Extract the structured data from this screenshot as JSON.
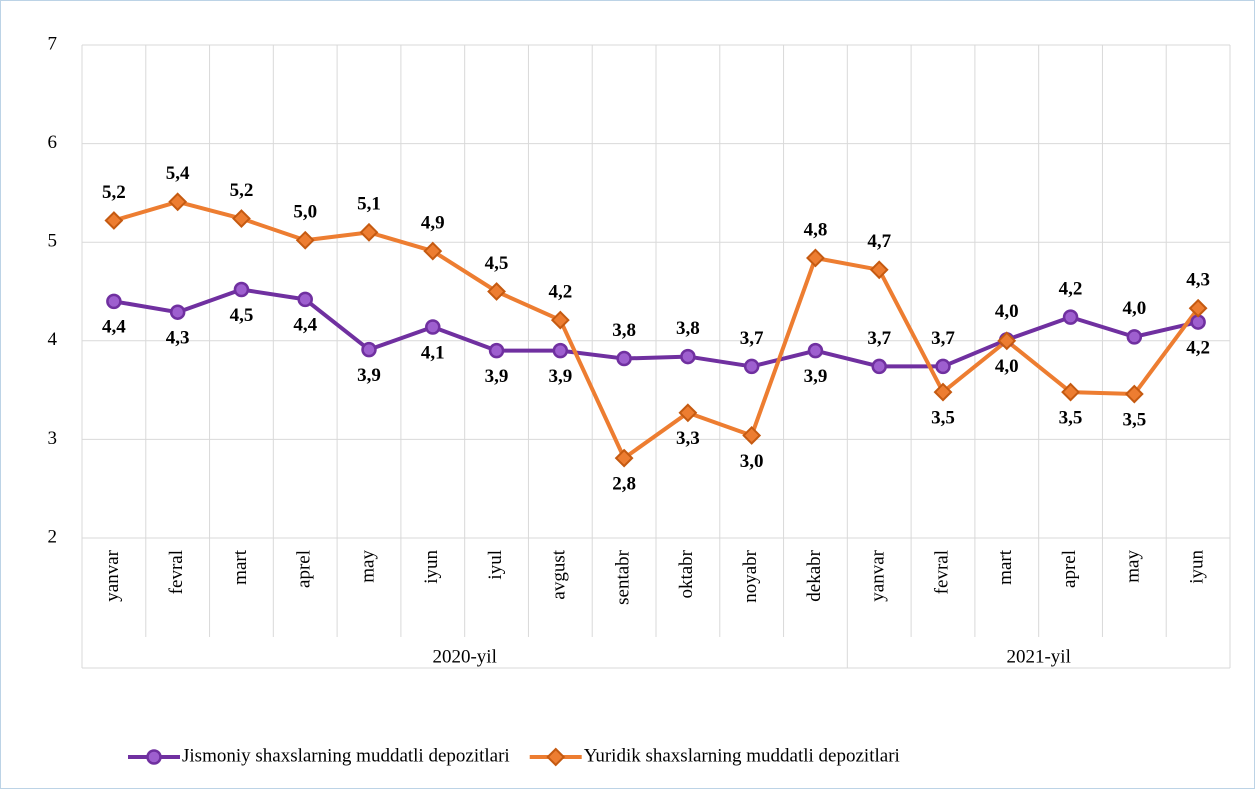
{
  "chart_data": {
    "type": "line",
    "categories": [
      "yanvar",
      "fevral",
      "mart",
      "aprel",
      "may",
      "iyun",
      "iyul",
      "avgust",
      "sentabr",
      "oktabr",
      "noyabr",
      "dekabr",
      "yanvar",
      "fevral",
      "mart",
      "aprel",
      "may",
      "iyun"
    ],
    "x_groups": [
      "2020-yil",
      "2021-yil"
    ],
    "series": [
      {
        "name": "Jismoniy shaxslarning muddatli depozitlari",
        "color": "#7030a0",
        "values": [
          4.4,
          4.29,
          4.52,
          4.42,
          3.91,
          4.14,
          3.9,
          3.9,
          3.82,
          3.84,
          3.74,
          3.9,
          3.74,
          3.74,
          4.01,
          4.24,
          4.04,
          4.19
        ],
        "value_labels": [
          "4,4",
          "4,3",
          "4,5",
          "4,4",
          "3,9",
          "4,1",
          "3,9",
          "3,9",
          "3,8",
          "3,8",
          "3,7",
          "3,9",
          "3,7",
          "3,7",
          "4,0",
          "4,2",
          "4,0",
          "4,2"
        ]
      },
      {
        "name": "Yuridik shaxslarning muddatli depozitlari",
        "color": "#ed7d31",
        "values": [
          5.22,
          5.41,
          5.24,
          5.02,
          5.1,
          4.91,
          4.5,
          4.21,
          2.81,
          3.27,
          3.04,
          4.84,
          4.72,
          3.48,
          4.0,
          3.48,
          3.46,
          4.33
        ],
        "value_labels": [
          "5,2",
          "5,4",
          "5,2",
          "5,0",
          "5,1",
          "4,9",
          "4,5",
          "4,2",
          "2,8",
          "3,3",
          "3,0",
          "4,8",
          "4,7",
          "3,5",
          "4,0",
          "3,5",
          "3,5",
          "4,3"
        ]
      }
    ],
    "ylim": [
      2,
      7
    ],
    "yticks": [
      2,
      3,
      4,
      5,
      6,
      7
    ],
    "grid": true,
    "legend": "bottom"
  }
}
